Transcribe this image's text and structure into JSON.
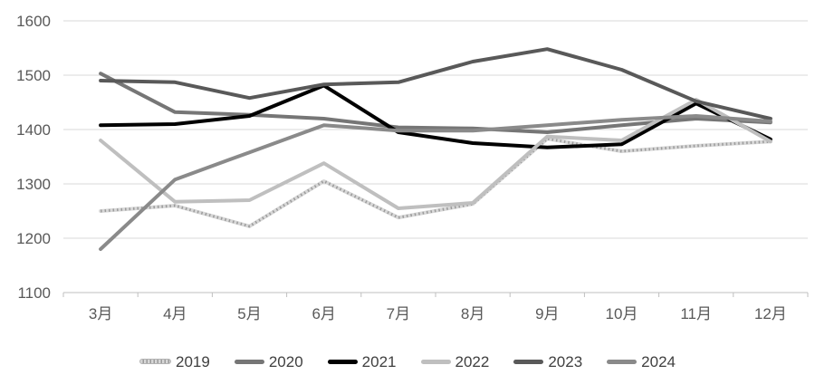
{
  "chart_data": {
    "type": "line",
    "title": "",
    "xlabel": "",
    "ylabel": "",
    "categories": [
      "3月",
      "4月",
      "5月",
      "6月",
      "7月",
      "8月",
      "9月",
      "10月",
      "11月",
      "12月"
    ],
    "series": [
      {
        "name": "2019",
        "color": "#d7d7d7",
        "overlay_color": "#9b9b9b",
        "pattern": "dotted",
        "values": [
          1250,
          1260,
          1222,
          1305,
          1238,
          1263,
          1383,
          1360,
          1370,
          1378
        ]
      },
      {
        "name": "2020",
        "color": "#767676",
        "pattern": "solid",
        "values": [
          1503,
          1432,
          1427,
          1420,
          1404,
          1402,
          1395,
          1408,
          1420,
          1413
        ]
      },
      {
        "name": "2021",
        "color": "#000000",
        "pattern": "solid",
        "values": [
          1408,
          1410,
          1425,
          1481,
          1395,
          1375,
          1367,
          1373,
          1448,
          1382
        ]
      },
      {
        "name": "2022",
        "color": "#bfbfbf",
        "pattern": "solid",
        "values": [
          1380,
          1267,
          1270,
          1338,
          1255,
          1265,
          1387,
          1380,
          1455,
          1378
        ]
      },
      {
        "name": "2023",
        "color": "#595959",
        "pattern": "solid",
        "values": [
          1490,
          1487,
          1458,
          1483,
          1487,
          1525,
          1548,
          1510,
          1452,
          1420
        ]
      },
      {
        "name": "2024",
        "color": "#8a8a8a",
        "pattern": "solid",
        "values": [
          1180,
          1308,
          1358,
          1408,
          1398,
          1398,
          1408,
          1418,
          1425,
          1415
        ]
      }
    ],
    "ylim": [
      1100,
      1600
    ],
    "y_ticks": [
      1600,
      1500,
      1400,
      1300,
      1200,
      1100
    ],
    "grid": true,
    "legend_position": "bottom",
    "colors": {
      "grid": "#d9d9d9",
      "axis": "#bfbfbf",
      "tick_label": "#595959"
    }
  }
}
